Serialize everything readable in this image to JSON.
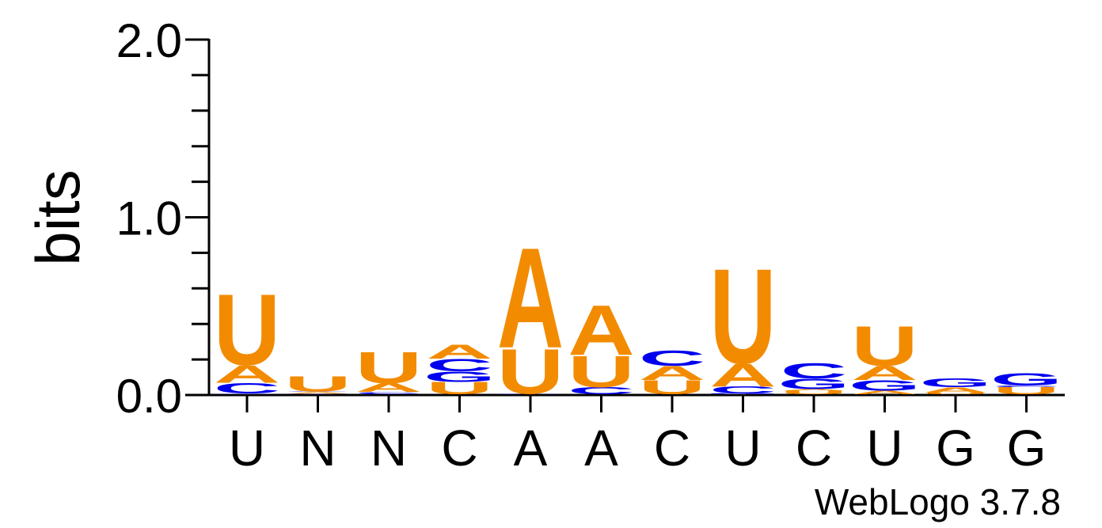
{
  "chart_data": {
    "type": "sequence-logo",
    "ylabel": "bits",
    "ylim": [
      0,
      2.0
    ],
    "yticks": [
      "0.0",
      "1.0",
      "2.0"
    ],
    "xticks": [
      "U",
      "N",
      "N",
      "C",
      "A",
      "A",
      "C",
      "U",
      "C",
      "U",
      "G",
      "G"
    ],
    "footer": "WebLogo 3.7.8",
    "colors": {
      "A": "#f38b00",
      "U": "#f38b00",
      "G": "#0000ee",
      "C": "#0000ee"
    },
    "columns": [
      {
        "label": "U",
        "stack": [
          {
            "letter": "G",
            "bits": 0.004
          },
          {
            "letter": "C",
            "bits": 0.06
          },
          {
            "letter": "A",
            "bits": 0.1
          },
          {
            "letter": "U",
            "bits": 0.41
          }
        ]
      },
      {
        "label": "N",
        "stack": [
          {
            "letter": "G",
            "bits": 0.003
          },
          {
            "letter": "A",
            "bits": 0.01
          },
          {
            "letter": "C",
            "bits": 0.003
          },
          {
            "letter": "U",
            "bits": 0.09
          }
        ]
      },
      {
        "label": "N",
        "stack": [
          {
            "letter": "G",
            "bits": 0.003
          },
          {
            "letter": "C",
            "bits": 0.01
          },
          {
            "letter": "A",
            "bits": 0.05
          },
          {
            "letter": "U",
            "bits": 0.18
          }
        ]
      },
      {
        "label": "C",
        "stack": [
          {
            "letter": "U",
            "bits": 0.07
          },
          {
            "letter": "G",
            "bits": 0.06
          },
          {
            "letter": "C",
            "bits": 0.07
          },
          {
            "letter": "A",
            "bits": 0.08
          }
        ]
      },
      {
        "label": "A",
        "stack": [
          {
            "letter": "G",
            "bits": 0.004
          },
          {
            "letter": "U",
            "bits": 0.26
          },
          {
            "letter": "A",
            "bits": 0.58
          }
        ]
      },
      {
        "label": "A",
        "stack": [
          {
            "letter": "C",
            "bits": 0.04
          },
          {
            "letter": "U",
            "bits": 0.18
          },
          {
            "letter": "A",
            "bits": 0.29
          }
        ]
      },
      {
        "label": "C",
        "stack": [
          {
            "letter": "U",
            "bits": 0.08
          },
          {
            "letter": "A",
            "bits": 0.08
          },
          {
            "letter": "C",
            "bits": 0.09
          }
        ]
      },
      {
        "label": "U",
        "stack": [
          {
            "letter": "G",
            "bits": 0.005
          },
          {
            "letter": "C",
            "bits": 0.04
          },
          {
            "letter": "A",
            "bits": 0.13
          },
          {
            "letter": "U",
            "bits": 0.55
          }
        ]
      },
      {
        "label": "C",
        "stack": [
          {
            "letter": "U",
            "bits": 0.02
          },
          {
            "letter": "A",
            "bits": 0.01
          },
          {
            "letter": "G",
            "bits": 0.06
          },
          {
            "letter": "C",
            "bits": 0.09
          }
        ]
      },
      {
        "label": "U",
        "stack": [
          {
            "letter": "A",
            "bits": 0.02
          },
          {
            "letter": "G",
            "bits": 0.06
          },
          {
            "letter": "A2",
            "bits": 0.08
          },
          {
            "letter": "U",
            "bits": 0.23
          }
        ]
      },
      {
        "label": "G",
        "stack": [
          {
            "letter": "U",
            "bits": 0.01
          },
          {
            "letter": "A",
            "bits": 0.03
          },
          {
            "letter": "G",
            "bits": 0.05
          }
        ]
      },
      {
        "label": "G",
        "stack": [
          {
            "letter": "U",
            "bits": 0.04
          },
          {
            "letter": "C",
            "bits": 0.01
          },
          {
            "letter": "G",
            "bits": 0.07
          }
        ]
      }
    ]
  }
}
